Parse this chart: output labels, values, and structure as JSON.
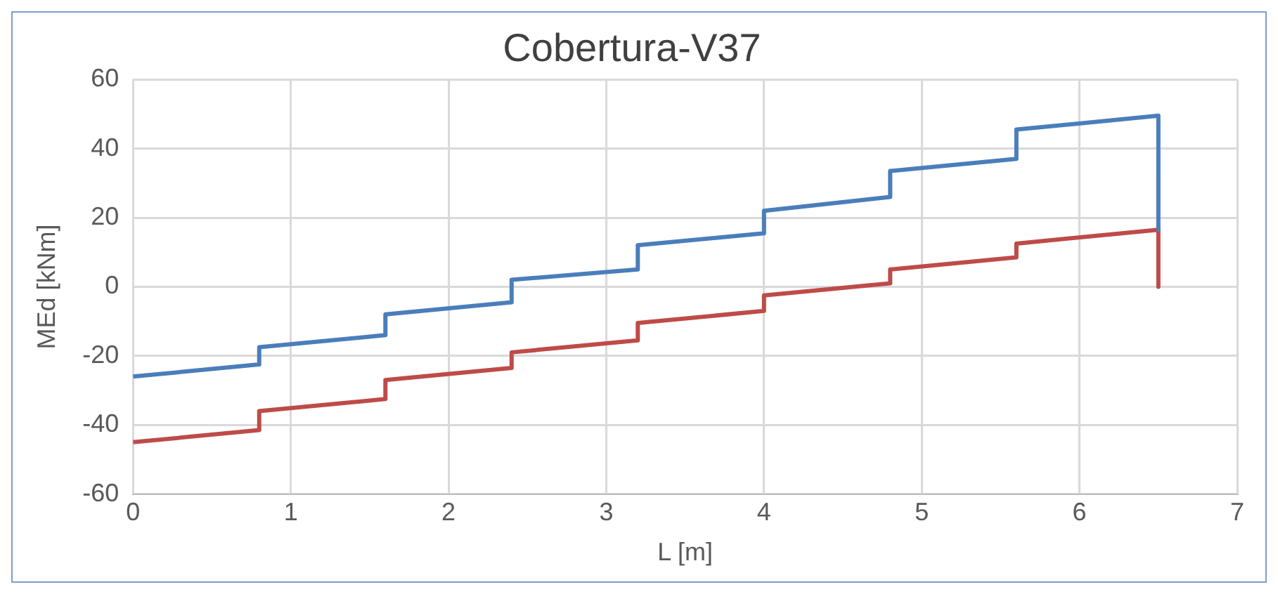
{
  "chart_data": {
    "type": "line",
    "title": "Cobertura-V37",
    "xlabel": "L [m]",
    "ylabel": "MEd [kNm]",
    "xlim": [
      0,
      7
    ],
    "xticks": [
      0,
      1,
      2,
      3,
      4,
      5,
      6,
      7
    ],
    "ylim": [
      -60,
      60
    ],
    "yticks": [
      -60,
      -40,
      -20,
      0,
      20,
      40,
      60
    ],
    "grid": true,
    "marker": "none",
    "line_style": "solid",
    "series": [
      {
        "color": "#4a7ebb",
        "x": [
          0,
          0.8,
          0.8,
          1.6,
          1.6,
          2.4,
          2.4,
          3.2,
          3.2,
          4.0,
          4.0,
          4.8,
          4.8,
          5.6,
          5.6,
          6.5,
          6.5
        ],
        "values": [
          -26,
          -22.5,
          -17.5,
          -14,
          -8,
          -4.5,
          2,
          5,
          12,
          15.5,
          22,
          26,
          33.5,
          37,
          45.5,
          49.5,
          16.5
        ]
      },
      {
        "color": "#be4b48",
        "x": [
          0,
          0.8,
          0.8,
          1.6,
          1.6,
          2.4,
          2.4,
          3.2,
          3.2,
          4.0,
          4.0,
          4.8,
          4.8,
          5.6,
          5.6,
          6.5,
          6.5
        ],
        "values": [
          -45,
          -41.5,
          -36,
          -32.5,
          -27,
          -23.5,
          -19,
          -15.5,
          -10.5,
          -7,
          -2.5,
          1,
          5,
          8.5,
          12.5,
          16.5,
          0
        ]
      }
    ]
  }
}
